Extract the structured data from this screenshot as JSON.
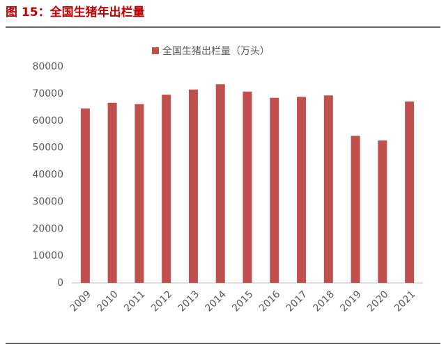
{
  "figure_title": "图 15：全国生猪年出栏量",
  "chart_data": {
    "type": "bar",
    "categories": [
      "2009",
      "2010",
      "2011",
      "2012",
      "2013",
      "2014",
      "2015",
      "2016",
      "2017",
      "2018",
      "2019",
      "2020",
      "2021"
    ],
    "series": [
      {
        "name": "全国生猪出栏量（万头）",
        "color": "#c0504d",
        "values": [
          64539,
          66686,
          66170,
          69628,
          71557,
          73510,
          70825,
          68502,
          68861,
          69382,
          54419,
          52704,
          67128
        ]
      }
    ],
    "ylim": [
      0,
      80000
    ],
    "yticks": [
      0,
      10000,
      20000,
      30000,
      40000,
      50000,
      60000,
      70000,
      80000
    ],
    "grid": false
  }
}
